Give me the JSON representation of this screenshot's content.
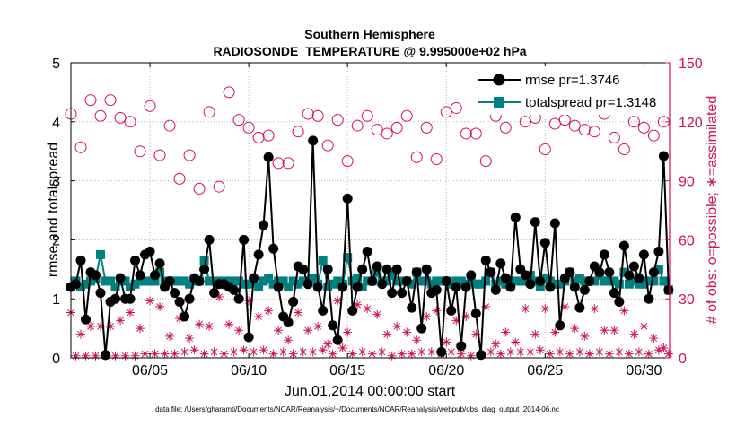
{
  "chart_data": {
    "type": "line",
    "title": "Southern Hemisphere",
    "subtitle": "RADIOSONDE_TEMPERATURE @ 9.995000e+02 hPa",
    "xlabel": "Jun.01,2014 00:00:00 start",
    "ylabel": "rmse and totalspread",
    "y2label": "# of obs: o=possible; ∗=assimilated",
    "footnote": "data file: /Users/gharamti/Documents/NCAR/Reanalysis/~/Documents/NCAR/Reanalysis/webpub/obs_diag_output_2014-06.nc",
    "xlim": [
      1.0,
      31.3
    ],
    "ylim": [
      0,
      5
    ],
    "y2lim": [
      0,
      150
    ],
    "xticks": [
      5,
      10,
      15,
      20,
      25,
      30
    ],
    "xticklabels": [
      "06/05",
      "06/10",
      "06/15",
      "06/20",
      "06/25",
      "06/30"
    ],
    "yticks": [
      0,
      1,
      2,
      3,
      4,
      5
    ],
    "yticklabels": [
      "0",
      "1",
      "2",
      "3",
      "4",
      "5"
    ],
    "y2ticks": [
      0,
      30,
      60,
      90,
      120,
      150
    ],
    "y2ticklabels": [
      "0",
      "30",
      "60",
      "90",
      "120",
      "150"
    ],
    "grid": true,
    "legend_position": "top-right",
    "colors": {
      "rmse": "#000000",
      "totalspread": "#008080",
      "obs": "#d0105a"
    },
    "series": [
      {
        "name": "rmse pr=1.3746",
        "marker": "circle",
        "color": "#000000",
        "x": [
          1.0,
          1.25,
          1.5,
          1.75,
          2.0,
          2.25,
          2.5,
          2.75,
          3.0,
          3.25,
          3.5,
          3.75,
          4.0,
          4.25,
          4.5,
          4.75,
          5.0,
          5.25,
          5.5,
          5.75,
          6.0,
          6.25,
          6.5,
          6.75,
          7.0,
          7.25,
          7.5,
          7.75,
          8.0,
          8.25,
          8.5,
          8.75,
          9.0,
          9.25,
          9.5,
          9.75,
          10.0,
          10.25,
          10.5,
          10.75,
          11.0,
          11.25,
          11.5,
          11.75,
          12.0,
          12.25,
          12.5,
          12.75,
          13.0,
          13.25,
          13.5,
          13.75,
          14.0,
          14.25,
          14.5,
          14.75,
          15.0,
          15.25,
          15.5,
          15.75,
          16.0,
          16.25,
          16.5,
          16.75,
          17.0,
          17.25,
          17.5,
          17.75,
          18.0,
          18.25,
          18.5,
          18.75,
          19.0,
          19.25,
          19.5,
          19.75,
          20.0,
          20.25,
          20.5,
          20.75,
          21.0,
          21.25,
          21.5,
          21.75,
          22.0,
          22.25,
          22.5,
          22.75,
          23.0,
          23.25,
          23.5,
          23.75,
          24.0,
          24.25,
          24.5,
          24.75,
          25.0,
          25.25,
          25.5,
          25.75,
          26.0,
          26.25,
          26.5,
          26.75,
          27.0,
          27.25,
          27.5,
          27.75,
          28.0,
          28.25,
          28.5,
          28.75,
          29.0,
          29.25,
          29.5,
          29.75,
          30.0,
          30.25,
          30.5,
          30.75,
          31.0,
          31.25
        ],
        "values": [
          1.2,
          1.25,
          1.65,
          0.65,
          1.45,
          1.4,
          1.1,
          0.05,
          0.95,
          1.0,
          1.35,
          1.0,
          1.0,
          1.65,
          1.4,
          1.75,
          1.8,
          1.4,
          1.6,
          1.2,
          1.3,
          1.1,
          0.95,
          0.7,
          1.0,
          1.35,
          1.3,
          1.5,
          2.0,
          1.1,
          1.25,
          1.25,
          1.2,
          1.15,
          1.0,
          2.0,
          0.35,
          1.35,
          1.75,
          2.25,
          3.4,
          1.85,
          1.2,
          0.7,
          0.6,
          0.95,
          1.55,
          1.5,
          1.25,
          3.68,
          1.2,
          0.8,
          1.5,
          0.55,
          0.3,
          1.2,
          2.7,
          0.8,
          1.2,
          1.5,
          1.8,
          1.3,
          1.55,
          1.25,
          1.5,
          1.1,
          1.5,
          1.1,
          1.3,
          0.85,
          1.45,
          0.5,
          1.5,
          1.1,
          1.15,
          0.1,
          1.3,
          0.8,
          1.2,
          0.2,
          1.2,
          1.4,
          0.75,
          0.05,
          1.65,
          1.45,
          1.15,
          1.6,
          1.35,
          1.2,
          2.38,
          1.5,
          1.4,
          1.25,
          2.3,
          1.3,
          1.95,
          1.2,
          2.28,
          0.55,
          1.35,
          1.45,
          1.2,
          0.85,
          1.15,
          1.3,
          1.55,
          1.45,
          1.75,
          1.45,
          1.1,
          0.95,
          1.9,
          1.4,
          1.55,
          1.35,
          1.75,
          1.0,
          1.45,
          1.8,
          3.42,
          1.15
        ]
      },
      {
        "name": "totalspread pr=1.3148",
        "marker": "square",
        "color": "#008080",
        "x": [
          1.0,
          1.25,
          1.5,
          1.75,
          2.0,
          2.25,
          2.5,
          2.75,
          3.0,
          3.25,
          3.5,
          3.75,
          4.0,
          4.25,
          4.5,
          4.75,
          5.0,
          5.25,
          5.5,
          5.75,
          6.0,
          6.25,
          6.5,
          6.75,
          7.0,
          7.25,
          7.5,
          7.75,
          8.0,
          8.25,
          8.5,
          8.75,
          9.0,
          9.25,
          9.5,
          9.75,
          10.0,
          10.25,
          10.5,
          10.75,
          11.0,
          11.25,
          11.5,
          11.75,
          12.0,
          12.25,
          12.5,
          12.75,
          13.0,
          13.25,
          13.5,
          13.75,
          14.0,
          14.25,
          14.5,
          14.75,
          15.0,
          15.25,
          15.5,
          15.75,
          16.0,
          16.25,
          16.5,
          16.75,
          17.0,
          17.25,
          17.5,
          17.75,
          18.0,
          18.25,
          18.5,
          18.75,
          19.0,
          19.25,
          19.5,
          19.75,
          20.0,
          20.25,
          20.5,
          20.75,
          21.0,
          21.25,
          21.5,
          21.75,
          22.0,
          22.25,
          22.5,
          22.75,
          23.0,
          23.25,
          23.5,
          23.75,
          24.0,
          24.25,
          24.5,
          24.75,
          25.0,
          25.25,
          25.5,
          25.75,
          26.0,
          26.25,
          26.5,
          26.75,
          27.0,
          27.25,
          27.5,
          27.75,
          28.0,
          28.25,
          28.5,
          28.75,
          29.0,
          29.25,
          29.5,
          29.75,
          30.0,
          30.25,
          30.5,
          30.75,
          31.0,
          31.25
        ],
        "values": [
          1.2,
          1.3,
          1.2,
          1.25,
          1.3,
          1.35,
          1.75,
          1.3,
          1.3,
          1.2,
          1.3,
          1.3,
          1.2,
          1.25,
          1.3,
          1.3,
          1.3,
          1.3,
          1.45,
          1.3,
          1.3,
          1.3,
          1.3,
          1.3,
          1.25,
          1.3,
          1.3,
          1.65,
          1.3,
          1.3,
          1.3,
          1.3,
          1.3,
          1.3,
          1.3,
          1.25,
          1.25,
          1.3,
          1.2,
          1.3,
          1.35,
          1.25,
          1.3,
          1.3,
          1.2,
          1.3,
          1.25,
          1.3,
          1.3,
          1.35,
          1.25,
          1.65,
          1.2,
          1.25,
          1.3,
          1.25,
          1.7,
          1.3,
          1.35,
          1.2,
          1.3,
          1.3,
          1.45,
          1.3,
          1.3,
          1.4,
          1.3,
          1.3,
          1.3,
          1.25,
          1.45,
          1.3,
          1.3,
          1.25,
          1.3,
          1.3,
          1.3,
          1.25,
          1.3,
          1.3,
          1.25,
          1.3,
          1.25,
          1.25,
          1.3,
          1.45,
          1.25,
          1.3,
          1.25,
          1.3,
          1.3,
          1.3,
          1.3,
          1.4,
          1.3,
          1.2,
          1.35,
          1.3,
          1.25,
          1.25,
          1.3,
          1.45,
          1.3,
          1.35,
          1.3,
          1.3,
          1.3,
          1.4,
          1.3,
          1.3,
          1.3,
          1.25,
          1.45,
          1.25,
          1.3,
          1.25,
          1.25,
          1.3,
          1.3,
          1.5,
          1.3,
          1.15
        ]
      },
      {
        "name": "possible",
        "marker": "open-circle",
        "axis": "right",
        "color": "#d0105a",
        "x": [
          1.0,
          1.5,
          2.0,
          2.5,
          3.0,
          3.5,
          4.0,
          4.5,
          5.0,
          5.5,
          6.0,
          6.5,
          7.0,
          7.5,
          8.0,
          8.5,
          9.0,
          9.5,
          10.0,
          10.5,
          11.0,
          11.5,
          12.0,
          12.5,
          13.0,
          13.5,
          14.0,
          14.5,
          15.0,
          15.5,
          16.0,
          16.5,
          17.0,
          17.5,
          18.0,
          18.5,
          19.0,
          19.5,
          20.0,
          20.5,
          21.0,
          21.5,
          22.0,
          22.5,
          23.0,
          23.5,
          24.0,
          24.5,
          25.0,
          25.5,
          26.0,
          26.5,
          27.0,
          27.5,
          28.0,
          28.5,
          29.0,
          29.5,
          30.0,
          30.5,
          31.0
        ],
        "values": [
          124,
          107,
          131,
          123,
          131,
          122,
          120,
          105,
          128,
          103,
          118,
          91,
          103,
          86,
          125,
          87,
          135,
          121,
          117,
          112,
          113,
          99,
          99,
          115,
          124,
          123,
          108,
          121,
          100,
          118,
          123,
          116,
          114,
          117,
          123,
          102,
          117,
          101,
          125,
          127,
          114,
          114,
          100,
          123,
          117,
          132,
          120,
          122,
          106,
          119,
          121,
          118,
          116,
          115,
          124,
          112,
          106,
          120,
          117,
          113,
          120
        ]
      },
      {
        "name": "assimilated",
        "marker": "star",
        "axis": "right",
        "color": "#d0105a",
        "x": [
          1.0,
          1.25,
          1.5,
          1.75,
          2.0,
          2.25,
          2.5,
          2.75,
          3.0,
          3.25,
          3.5,
          3.75,
          4.0,
          4.25,
          4.5,
          4.75,
          5.0,
          5.25,
          5.5,
          5.75,
          6.0,
          6.25,
          6.5,
          6.75,
          7.0,
          7.25,
          7.5,
          7.75,
          8.0,
          8.25,
          8.5,
          8.75,
          9.0,
          9.25,
          9.5,
          9.75,
          10.0,
          10.25,
          10.5,
          10.75,
          11.0,
          11.25,
          11.5,
          11.75,
          12.0,
          12.25,
          12.5,
          12.75,
          13.0,
          13.25,
          13.5,
          13.75,
          14.0,
          14.25,
          14.5,
          14.75,
          15.0,
          15.25,
          15.5,
          15.75,
          16.0,
          16.25,
          16.5,
          16.75,
          17.0,
          17.25,
          17.5,
          17.75,
          18.0,
          18.25,
          18.5,
          18.75,
          19.0,
          19.25,
          19.5,
          19.75,
          20.0,
          20.25,
          20.5,
          20.75,
          21.0,
          21.25,
          21.5,
          21.75,
          22.0,
          22.25,
          22.5,
          22.75,
          23.0,
          23.25,
          23.5,
          23.75,
          24.0,
          24.25,
          24.5,
          24.75,
          25.0,
          25.25,
          25.5,
          25.75,
          26.0,
          26.25,
          26.5,
          26.75,
          27.0,
          27.25,
          27.5,
          27.75,
          28.0,
          28.25,
          28.5,
          28.75,
          29.0,
          29.25,
          29.5,
          29.75,
          30.0,
          30.25,
          30.5,
          30.75,
          31.0,
          31.25
        ],
        "values": [
          23,
          1,
          12,
          1,
          16,
          1,
          16,
          1,
          16,
          1,
          19,
          1,
          23,
          1,
          15,
          2,
          29,
          2,
          26,
          2,
          11,
          2,
          20,
          3,
          10,
          4,
          17,
          2,
          16,
          3,
          31,
          2,
          17,
          3,
          14,
          4,
          29,
          3,
          21,
          4,
          24,
          2,
          14,
          3,
          9,
          2,
          23,
          3,
          14,
          3,
          16,
          4,
          7,
          2,
          29,
          5,
          13,
          2,
          27,
          3,
          25,
          2,
          22,
          3,
          12,
          1,
          16,
          2,
          13,
          2,
          9,
          3,
          21,
          3,
          24,
          2,
          8,
          3,
          19,
          2,
          21,
          1,
          12,
          2,
          26,
          3,
          7,
          2,
          13,
          3,
          8,
          3,
          25,
          3,
          12,
          4,
          25,
          2,
          13,
          3,
          26,
          2,
          15,
          3,
          11,
          2,
          25,
          3,
          14,
          2,
          14,
          3,
          24,
          2,
          12,
          3,
          16,
          2,
          10,
          4,
          5,
          2
        ]
      }
    ]
  }
}
